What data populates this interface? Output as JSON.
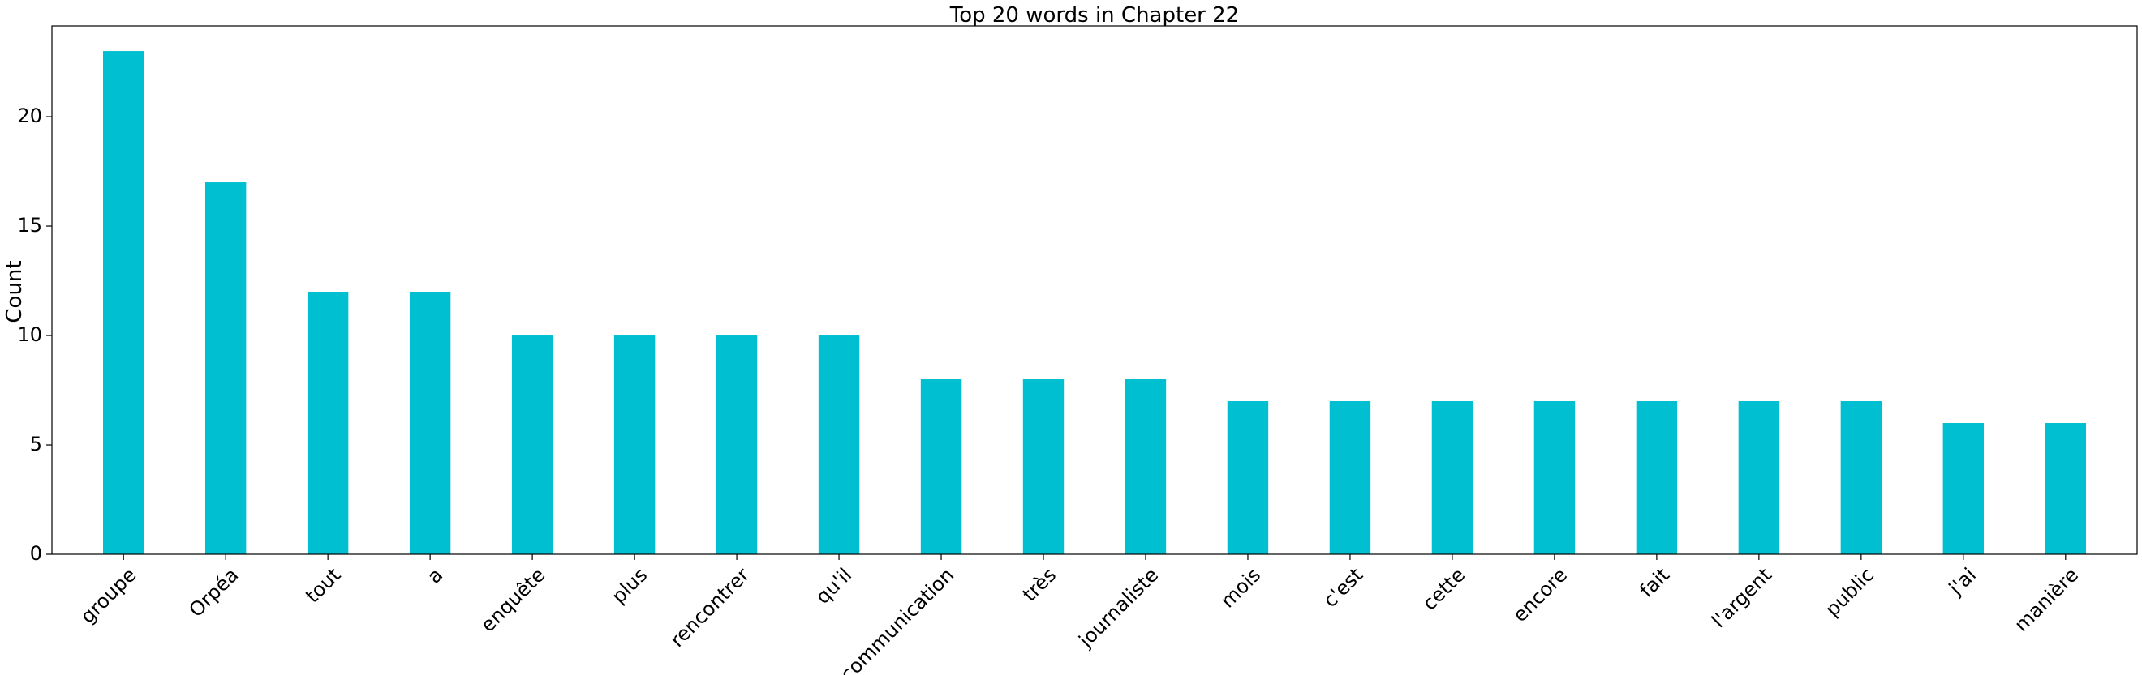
{
  "chart_data": {
    "type": "bar",
    "title": "Top 20 words in Chapter 22",
    "xlabel": "",
    "ylabel": "Count",
    "categories": [
      "groupe",
      "Orpéa",
      "tout",
      "a",
      "enquête",
      "plus",
      "rencontrer",
      "qu'il",
      "communication",
      "très",
      "journaliste",
      "mois",
      "c'est",
      "cette",
      "encore",
      "fait",
      "l'argent",
      "public",
      "j'ai",
      "manière"
    ],
    "values": [
      23,
      17,
      12,
      12,
      10,
      10,
      10,
      10,
      8,
      8,
      8,
      7,
      7,
      7,
      7,
      7,
      7,
      7,
      6,
      6
    ],
    "ylim": [
      0,
      24.15
    ],
    "yticks": [
      0,
      5,
      10,
      15,
      20
    ],
    "grid": false,
    "bar_color": "#00bfd0"
  }
}
